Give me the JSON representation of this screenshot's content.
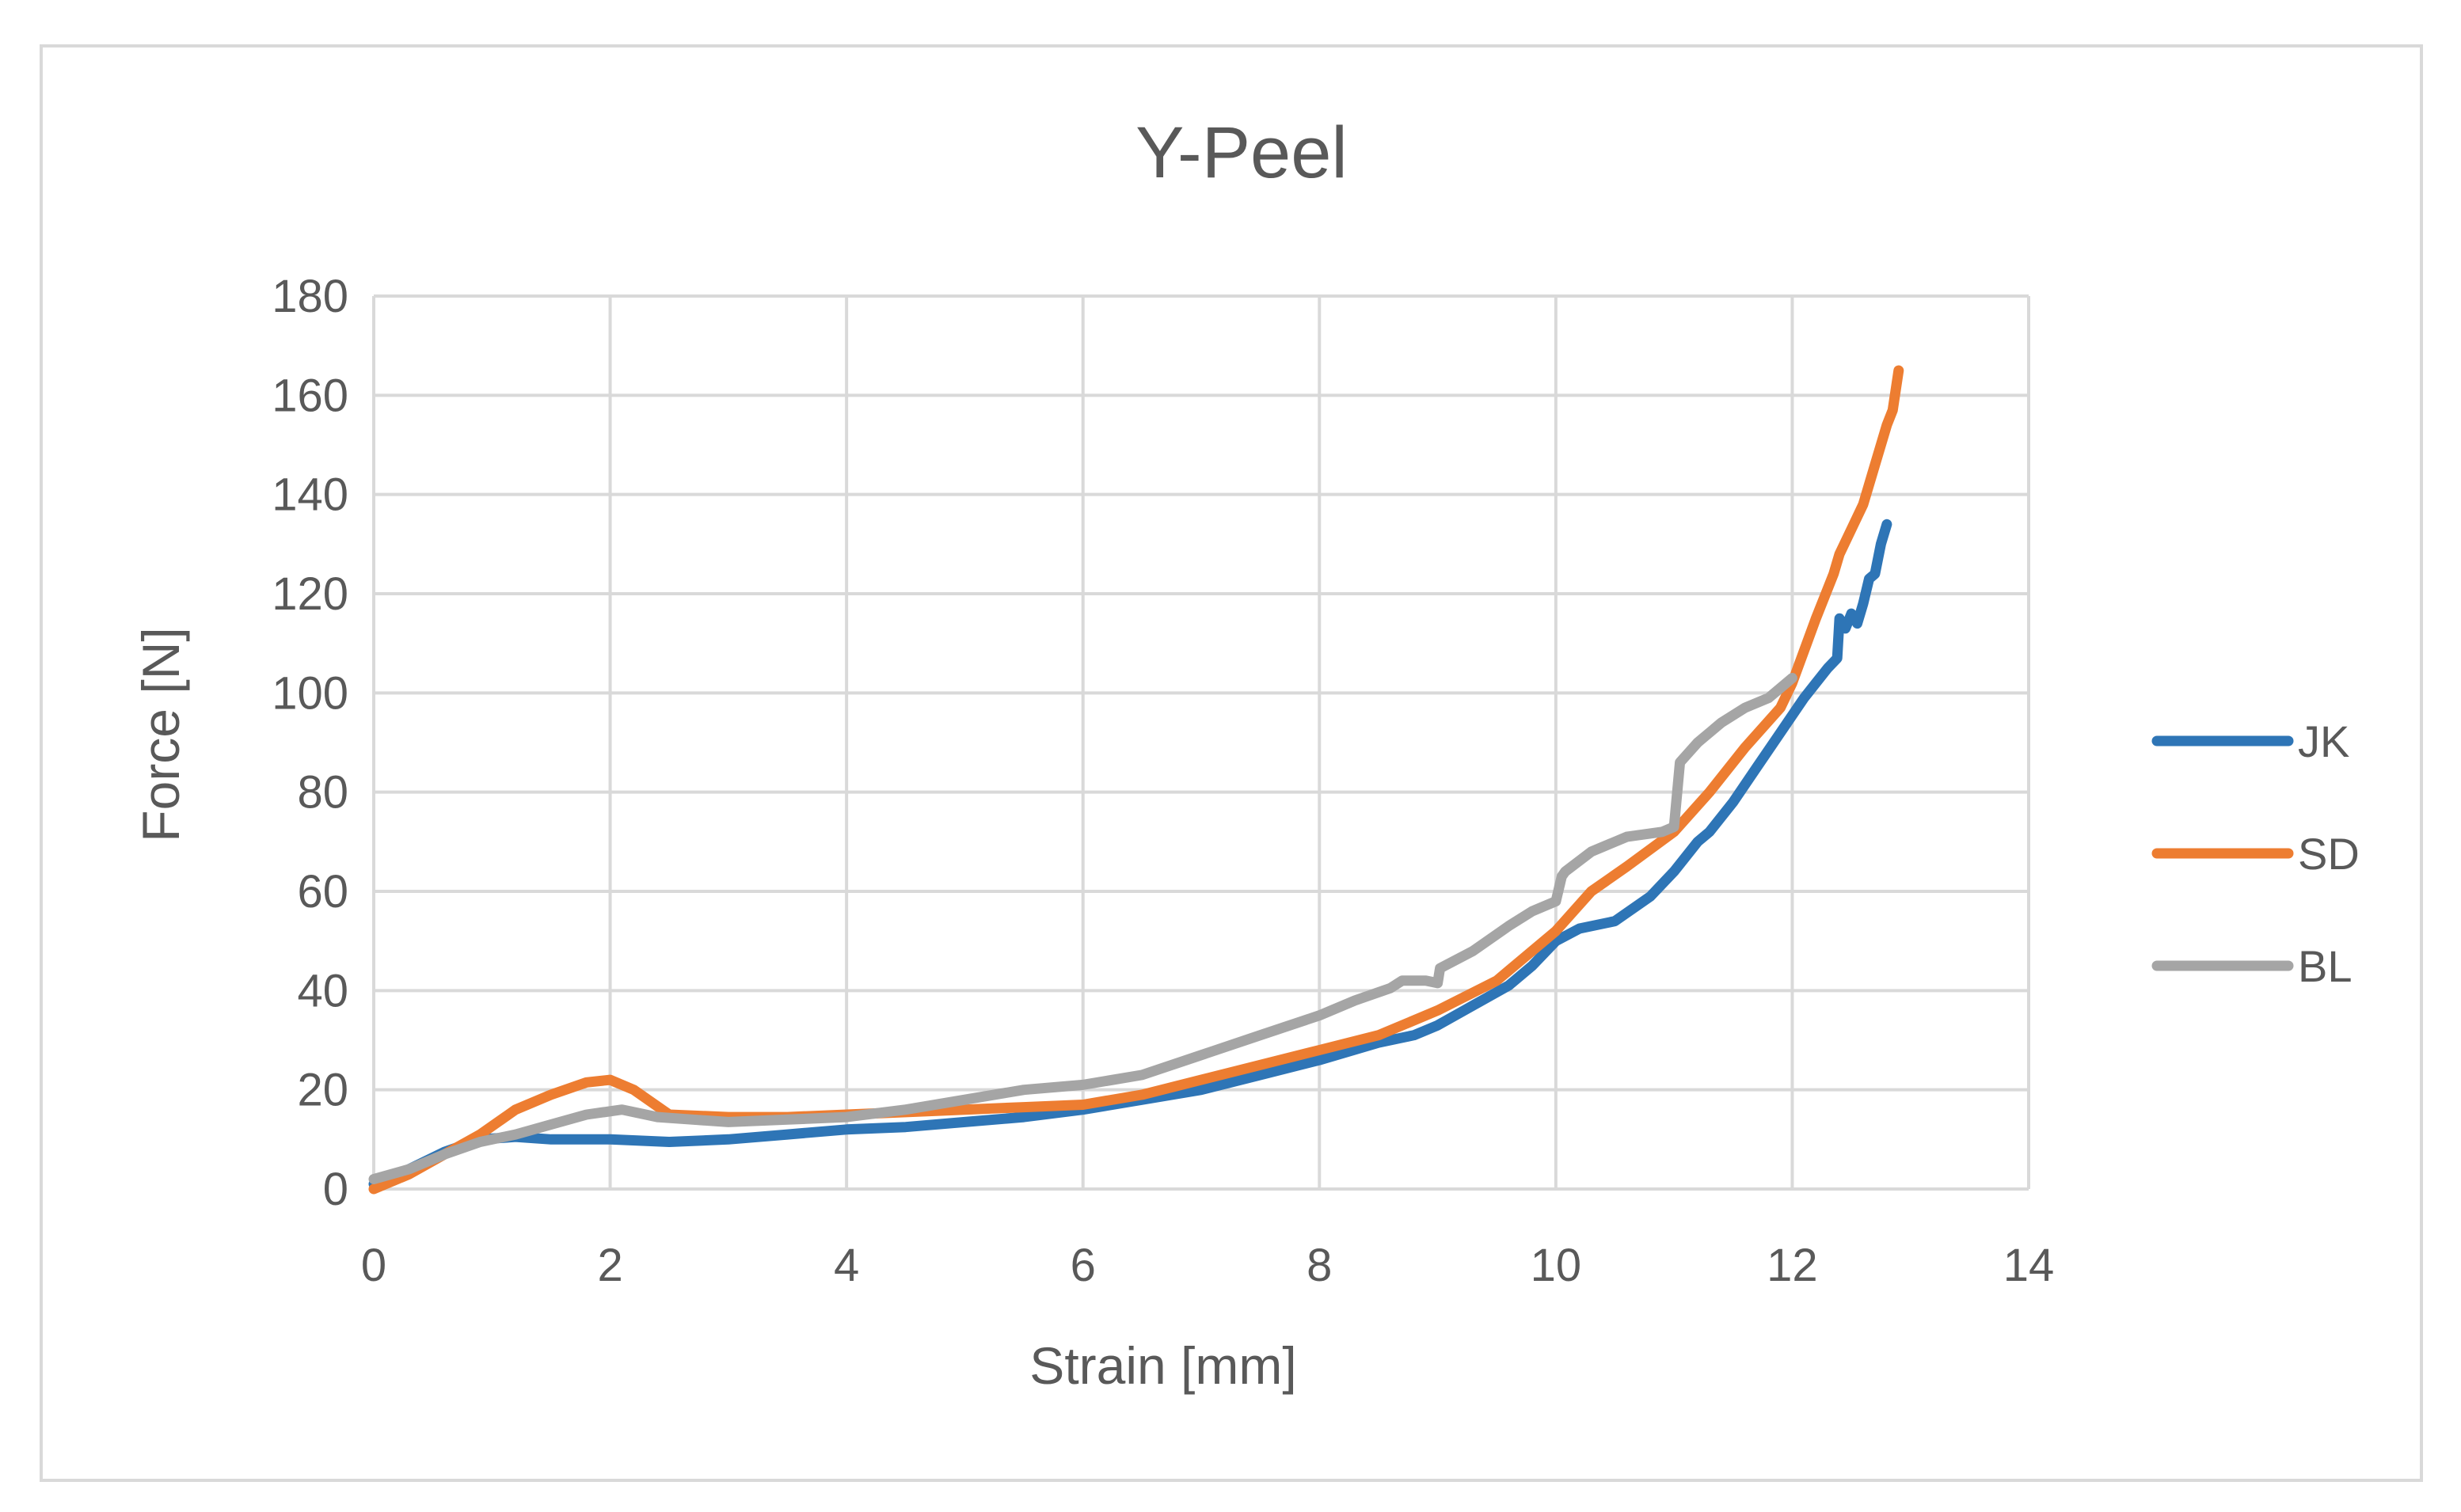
{
  "chart_data": {
    "type": "line",
    "title": "Y-Peel",
    "xlabel": "Strain [mm]",
    "ylabel": "Force [N]",
    "xlim": [
      0,
      14
    ],
    "ylim": [
      0,
      180
    ],
    "xticks": [
      0,
      2,
      4,
      6,
      8,
      10,
      12,
      14
    ],
    "yticks": [
      0,
      20,
      40,
      60,
      80,
      100,
      120,
      140,
      160,
      180
    ],
    "grid": true,
    "legend_position": "right",
    "series": [
      {
        "name": "JK",
        "color": "#2e75b6",
        "x": [
          0,
          0.3,
          0.6,
          0.9,
          1.2,
          1.5,
          2.0,
          2.5,
          3.0,
          3.5,
          4.0,
          4.5,
          5.0,
          5.5,
          6.0,
          6.5,
          7.0,
          7.5,
          8.0,
          8.5,
          8.8,
          9.0,
          9.3,
          9.6,
          9.8,
          10.0,
          10.2,
          10.5,
          10.8,
          11.0,
          11.2,
          11.3,
          11.5,
          11.7,
          11.9,
          12.1,
          12.3,
          12.38,
          12.4,
          12.45,
          12.5,
          12.55,
          12.6,
          12.65,
          12.7,
          12.75,
          12.8
        ],
        "y": [
          1,
          4,
          7.5,
          10,
          10.5,
          10,
          10,
          9.5,
          10,
          11,
          12,
          12.5,
          13.5,
          14.5,
          16,
          18,
          20,
          23,
          26,
          29.5,
          31,
          33,
          37,
          41,
          45,
          50,
          52.5,
          54,
          59,
          64,
          70,
          72,
          78,
          85,
          92,
          99,
          105,
          107,
          115,
          113,
          116,
          114,
          118,
          123,
          124,
          130,
          134
        ]
      },
      {
        "name": "SD",
        "color": "#ed7d31",
        "x": [
          0,
          0.3,
          0.6,
          0.9,
          1.2,
          1.5,
          1.8,
          2.0,
          2.2,
          2.5,
          3.0,
          3.5,
          4.0,
          4.5,
          5.0,
          5.5,
          6.0,
          6.5,
          7.0,
          7.5,
          8.0,
          8.5,
          9.0,
          9.5,
          10.0,
          10.3,
          10.6,
          11.0,
          11.3,
          11.6,
          11.9,
          12.0,
          12.2,
          12.35,
          12.4,
          12.5,
          12.6,
          12.7,
          12.8,
          12.85,
          12.9
        ],
        "y": [
          0,
          3,
          7,
          11,
          16,
          19,
          21.5,
          22,
          20,
          15,
          14.5,
          14.5,
          15,
          15.5,
          16,
          16.5,
          17,
          19,
          22,
          25,
          28,
          31,
          36,
          42,
          52,
          60,
          65,
          72,
          80,
          89,
          97,
          102,
          115,
          124,
          128,
          133,
          138,
          146,
          154,
          157,
          165
        ]
      },
      {
        "name": "BL",
        "color": "#a5a5a5",
        "x": [
          0,
          0.3,
          0.6,
          0.9,
          1.2,
          1.5,
          1.8,
          2.1,
          2.4,
          2.7,
          3.0,
          3.5,
          4.0,
          4.5,
          5.0,
          5.5,
          6.0,
          6.5,
          7.0,
          7.5,
          8.0,
          8.3,
          8.6,
          8.7,
          8.9,
          9.0,
          9.02,
          9.3,
          9.6,
          9.8,
          10.0,
          10.05,
          10.08,
          10.3,
          10.6,
          10.9,
          11.0,
          11.05,
          11.2,
          11.4,
          11.6,
          11.8,
          12.0
        ],
        "y": [
          2,
          4,
          7,
          9.5,
          11,
          13,
          15,
          16,
          14.5,
          14,
          13.5,
          14,
          14.5,
          16,
          18,
          20,
          21,
          23,
          27,
          31,
          35,
          38,
          40.5,
          42,
          42,
          41.5,
          44.5,
          48,
          53,
          56,
          58,
          63,
          64,
          68,
          71,
          72,
          73,
          86,
          90,
          94,
          97,
          99,
          103
        ]
      }
    ]
  }
}
